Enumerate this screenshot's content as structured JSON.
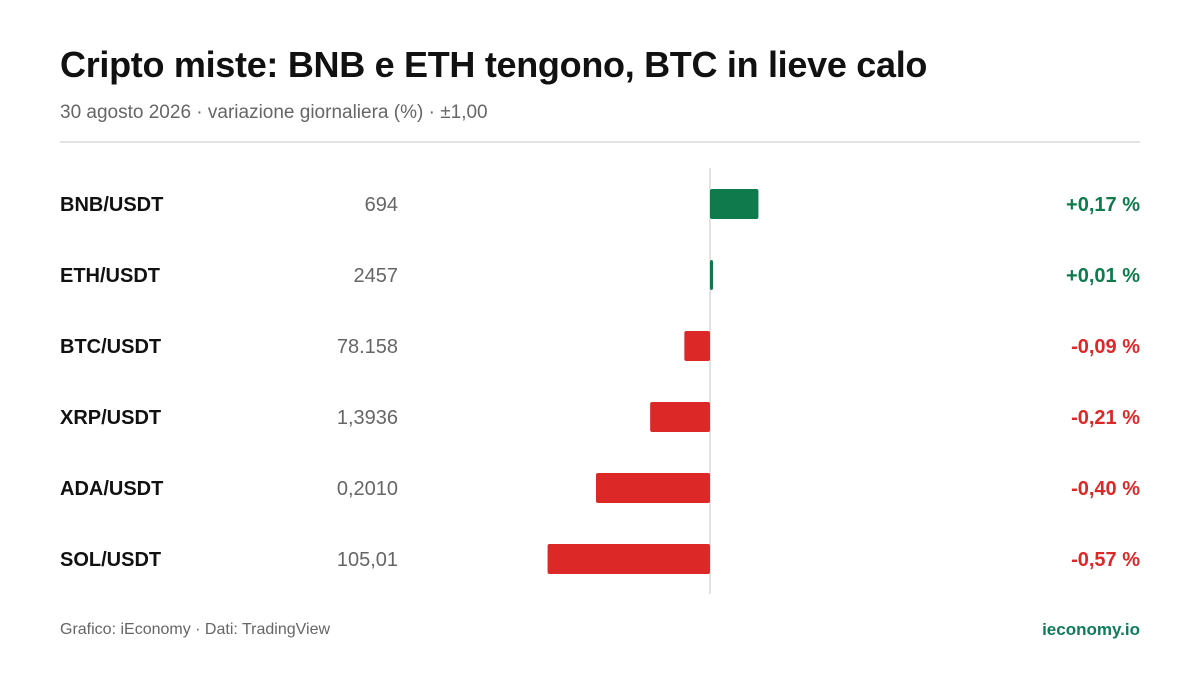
{
  "header": {
    "title": "Cripto miste: BNB e ETH tengono, BTC in lieve calo",
    "subtitle": "30 agosto 2026 · variazione giornaliera (%) · ±1,00"
  },
  "footer": {
    "source": "Grafico: iEconomy · Dati: TradingView",
    "brand": "ieconomy.io"
  },
  "colors": {
    "positive": "#0f7b4d",
    "negative": "#dd2828",
    "axis": "#d9d9d9"
  },
  "chart_data": {
    "type": "bar",
    "orientation": "horizontal",
    "title": "Cripto miste: BNB e ETH tengono, BTC in lieve calo",
    "subtitle": "30 agosto 2026 · variazione giornaliera (%) · ±1,00",
    "xlim": [
      -1.0,
      1.0
    ],
    "grid": false,
    "categories": [
      "BNB/USDT",
      "ETH/USDT",
      "BTC/USDT",
      "XRP/USDT",
      "ADA/USDT",
      "SOL/USDT"
    ],
    "prices": [
      "694",
      "2457",
      "78.158",
      "1,3936",
      "0,2010",
      "105,01"
    ],
    "values": [
      0.17,
      0.01,
      -0.09,
      -0.21,
      -0.4,
      -0.57
    ],
    "value_labels": [
      "+0,17 %",
      "+0,01 %",
      "-0,09 %",
      "-0,21 %",
      "-0,40 %",
      "-0,57 %"
    ]
  }
}
